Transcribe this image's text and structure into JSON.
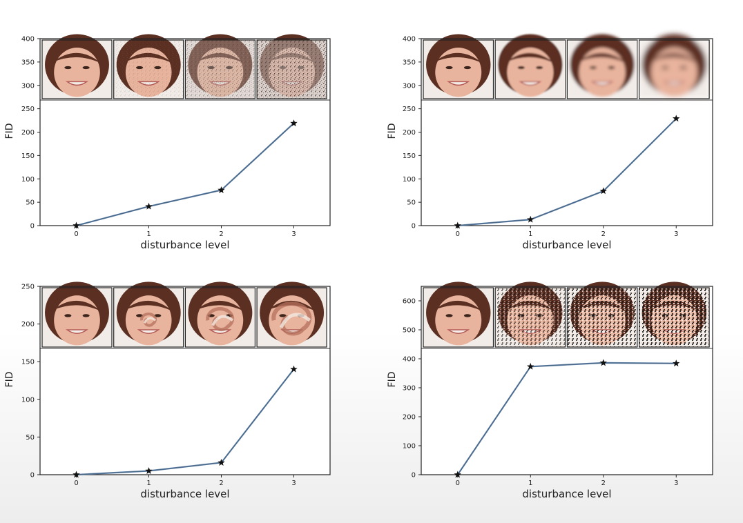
{
  "chart_data": [
    {
      "type": "line",
      "x": [
        0,
        1,
        2,
        3
      ],
      "values": [
        0,
        41,
        76,
        219
      ],
      "xlabel": "disturbance level",
      "ylabel": "FID",
      "ylim": [
        0,
        400
      ],
      "yticks": [
        0,
        50,
        100,
        150,
        200,
        250,
        300,
        350,
        400
      ],
      "xticks": [
        0,
        1,
        2,
        3
      ],
      "xlim": [
        -0.5,
        3.5
      ],
      "grid": false,
      "marker": "star",
      "line_color": "#5a7fa8",
      "thumbnail_disturbance": "gaussian-noise"
    },
    {
      "type": "line",
      "x": [
        0,
        1,
        2,
        3
      ],
      "values": [
        0,
        13,
        74,
        229
      ],
      "xlabel": "disturbance level",
      "ylabel": "FID",
      "ylim": [
        0,
        400
      ],
      "yticks": [
        0,
        50,
        100,
        150,
        200,
        250,
        300,
        350,
        400
      ],
      "xticks": [
        0,
        1,
        2,
        3
      ],
      "xlim": [
        -0.5,
        3.5
      ],
      "grid": false,
      "marker": "star",
      "line_color": "#5a7fa8",
      "thumbnail_disturbance": "gaussian-blur"
    },
    {
      "type": "line",
      "x": [
        0,
        1,
        2,
        3
      ],
      "values": [
        0,
        5,
        16,
        140
      ],
      "xlabel": "disturbance level",
      "ylabel": "FID",
      "ylim": [
        0,
        250
      ],
      "yticks": [
        0,
        50,
        100,
        150,
        200,
        250
      ],
      "xticks": [
        0,
        1,
        2,
        3
      ],
      "xlim": [
        -0.5,
        3.5
      ],
      "grid": false,
      "marker": "star",
      "line_color": "#5a7fa8",
      "thumbnail_disturbance": "swirl"
    },
    {
      "type": "line",
      "x": [
        0,
        1,
        2,
        3
      ],
      "values": [
        0,
        373,
        386,
        384
      ],
      "xlabel": "disturbance level",
      "ylabel": "FID",
      "ylim": [
        0,
        650
      ],
      "yticks": [
        0,
        100,
        200,
        300,
        400,
        500,
        600
      ],
      "xticks": [
        0,
        1,
        2,
        3
      ],
      "xlim": [
        -0.5,
        3.5
      ],
      "grid": false,
      "marker": "star",
      "line_color": "#5a7fa8",
      "thumbnail_disturbance": "salt-and-pepper"
    }
  ]
}
